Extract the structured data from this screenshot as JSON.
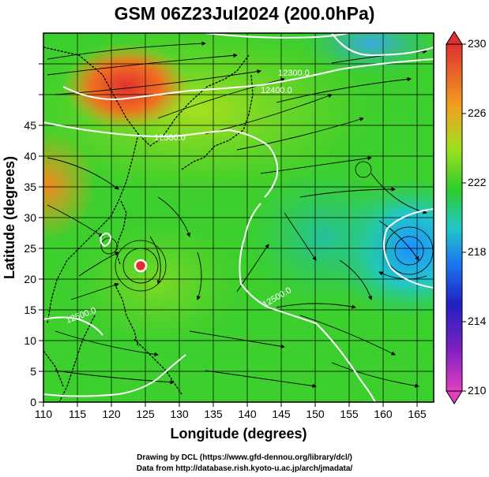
{
  "title": "GSM 06Z23Jul2024 (200.0hPa)",
  "x_axis": {
    "label": "Longitude (degrees)",
    "ticks": [
      "110",
      "115",
      "120",
      "125",
      "130",
      "135",
      "140",
      "145",
      "150",
      "155",
      "160",
      "165"
    ]
  },
  "y_axis": {
    "label": "Latitude  (degrees)",
    "ticks": [
      "0",
      "5",
      "10",
      "15",
      "20",
      "25",
      "30",
      "35",
      "40",
      "45"
    ]
  },
  "colorbar": {
    "ticks": [
      "210",
      "214",
      "218",
      "222",
      "226",
      "230"
    ],
    "colors": [
      "#e040c0",
      "#2020c0",
      "#1e90ff",
      "#22c8c8",
      "#2ecc2e",
      "#a0e020",
      "#f0a020",
      "#e03030"
    ]
  },
  "contour_labels": [
    "12300.0",
    "12400.0",
    "12500.0",
    "12500.0",
    "12500.0"
  ],
  "credits": [
    "Drawing by DCL (https://www.gfd-dennou.org/library/dcl/)",
    "Data from http://database.rish.kyoto-u.ac.jp/arch/jmadata/"
  ]
}
